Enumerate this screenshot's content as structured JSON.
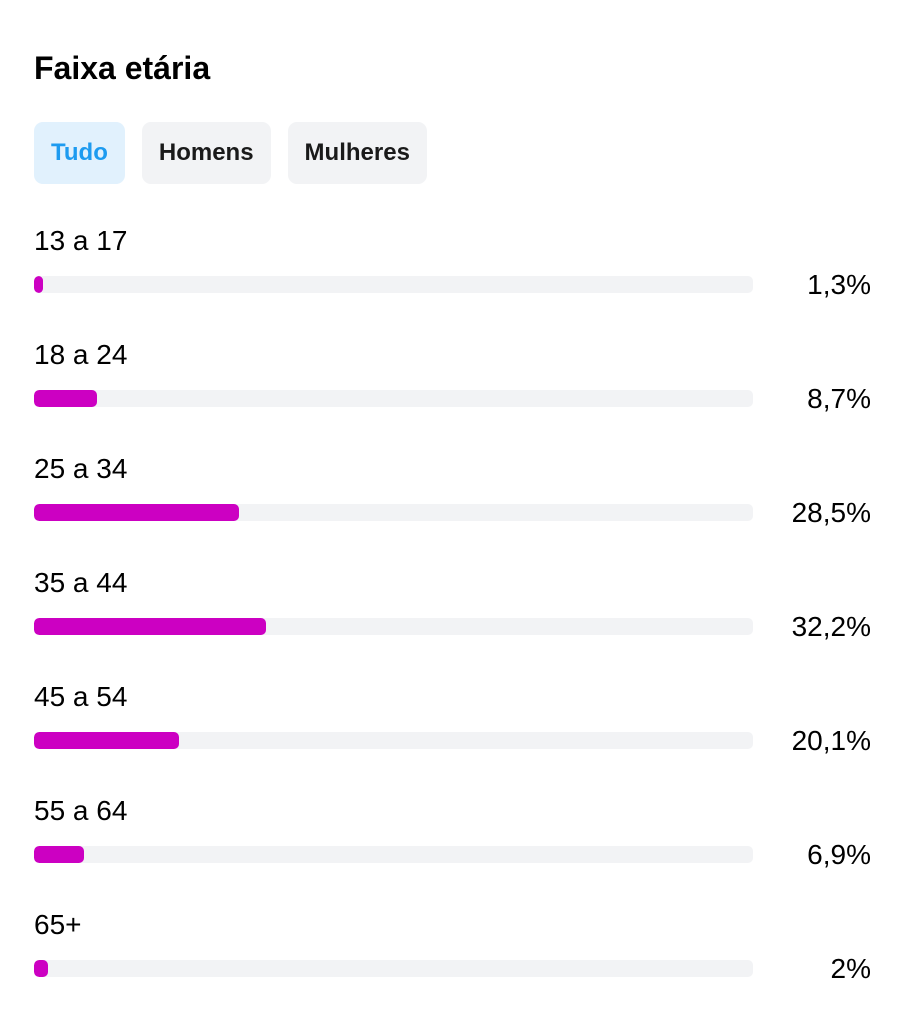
{
  "header": {
    "title": "Faixa etária"
  },
  "tabs": [
    {
      "label": "Tudo",
      "active": true
    },
    {
      "label": "Homens",
      "active": false
    },
    {
      "label": "Mulheres",
      "active": false
    }
  ],
  "colors": {
    "bar_fill": "#cc00c2",
    "track": "#f2f3f5",
    "active_tab_bg": "#e1f1fd",
    "active_tab_text": "#1d9bf0"
  },
  "age_groups": [
    {
      "label": "13 a 17",
      "value_text": "1,3%",
      "percent": 1.3
    },
    {
      "label": "18 a 24",
      "value_text": "8,7%",
      "percent": 8.7
    },
    {
      "label": "25 a 34",
      "value_text": "28,5%",
      "percent": 28.5
    },
    {
      "label": "35 a 44",
      "value_text": "32,2%",
      "percent": 32.2
    },
    {
      "label": "45 a 54",
      "value_text": "20,1%",
      "percent": 20.1
    },
    {
      "label": "55 a 64",
      "value_text": "6,9%",
      "percent": 6.9
    },
    {
      "label": "65+",
      "value_text": "2%",
      "percent": 2
    }
  ]
}
